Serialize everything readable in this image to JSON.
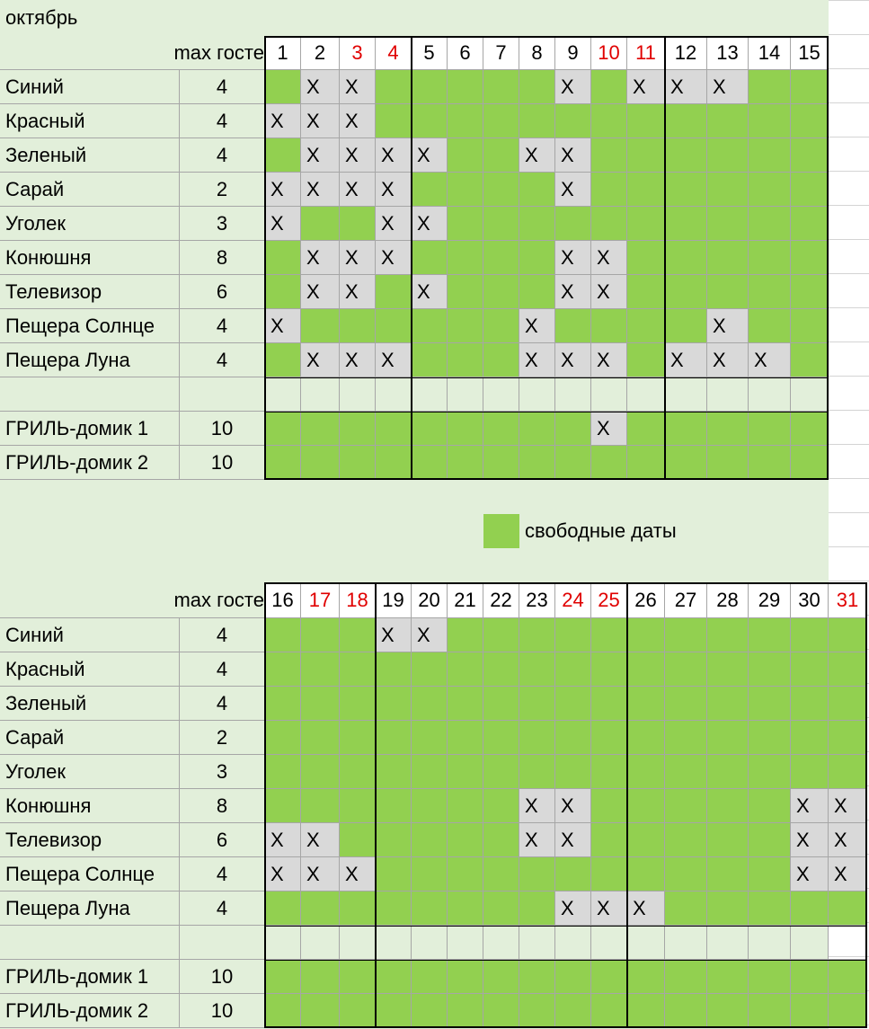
{
  "title": "октябрь",
  "legend": {
    "label": "свободные даты"
  },
  "blocks": [
    {
      "header": {
        "max_label": "max госте",
        "days": [
          1,
          2,
          3,
          4,
          5,
          6,
          7,
          8,
          9,
          10,
          11,
          12,
          13,
          14,
          15
        ],
        "red_days": [
          3,
          4,
          10,
          11
        ]
      },
      "rows": [
        {
          "name": "Синий",
          "max": 4,
          "cells": [
            null,
            "X",
            "X",
            null,
            null,
            null,
            null,
            null,
            "X",
            null,
            "X",
            "X",
            "X",
            null,
            null
          ]
        },
        {
          "name": "Красный",
          "max": 4,
          "cells": [
            "X",
            "X",
            "X",
            null,
            null,
            null,
            null,
            null,
            null,
            null,
            null,
            null,
            null,
            null,
            null
          ]
        },
        {
          "name": "Зеленый",
          "max": 4,
          "cells": [
            null,
            "X",
            "X",
            "X",
            "X",
            null,
            null,
            "X",
            "X",
            null,
            null,
            null,
            null,
            null,
            null
          ]
        },
        {
          "name": "Сарай",
          "max": 2,
          "cells": [
            "X",
            "X",
            "X",
            "X",
            null,
            null,
            null,
            null,
            "X",
            null,
            null,
            null,
            null,
            null,
            null
          ]
        },
        {
          "name": "Уголек",
          "max": 3,
          "cells": [
            "X",
            null,
            null,
            "X",
            "X",
            null,
            null,
            null,
            null,
            null,
            null,
            null,
            null,
            null,
            null
          ]
        },
        {
          "name": "Конюшня",
          "max": 8,
          "cells": [
            null,
            "X",
            "X",
            "X",
            null,
            null,
            null,
            null,
            "X",
            "X",
            null,
            null,
            null,
            null,
            null
          ]
        },
        {
          "name": "Телевизор",
          "max": 6,
          "cells": [
            null,
            "X",
            "X",
            null,
            "X",
            null,
            null,
            null,
            "X",
            "X",
            null,
            null,
            null,
            null,
            null
          ]
        },
        {
          "name": "Пещера Солнце",
          "max": 4,
          "cells": [
            "X",
            null,
            null,
            null,
            null,
            null,
            null,
            "X",
            null,
            null,
            null,
            null,
            "X",
            null,
            null
          ]
        },
        {
          "name": "Пещера Луна",
          "max": 4,
          "cells": [
            null,
            "X",
            "X",
            "X",
            null,
            null,
            null,
            "X",
            "X",
            "X",
            null,
            "X",
            "X",
            "X",
            null
          ]
        }
      ],
      "grill_rows": [
        {
          "name": "ГРИЛЬ-домик 1",
          "max": 10,
          "cells": [
            null,
            null,
            null,
            null,
            null,
            null,
            null,
            null,
            null,
            "X",
            null,
            null,
            null,
            null,
            null
          ]
        },
        {
          "name": "ГРИЛЬ-домик 2",
          "max": 10,
          "cells": [
            null,
            null,
            null,
            null,
            null,
            null,
            null,
            null,
            null,
            null,
            null,
            null,
            null,
            null,
            null
          ]
        }
      ]
    },
    {
      "header": {
        "max_label": "max госте",
        "days": [
          16,
          17,
          18,
          19,
          20,
          21,
          22,
          23,
          24,
          25,
          26,
          27,
          28,
          29,
          30,
          31
        ],
        "red_days": [
          17,
          18,
          24,
          25,
          31
        ]
      },
      "rows": [
        {
          "name": "Синий",
          "max": 4,
          "cells": [
            null,
            null,
            null,
            "X",
            "X",
            null,
            null,
            null,
            null,
            null,
            null,
            null,
            null,
            null,
            null,
            null
          ]
        },
        {
          "name": "Красный",
          "max": 4,
          "cells": [
            null,
            null,
            null,
            null,
            null,
            null,
            null,
            null,
            null,
            null,
            null,
            null,
            null,
            null,
            null,
            null
          ]
        },
        {
          "name": "Зеленый",
          "max": 4,
          "cells": [
            null,
            null,
            null,
            null,
            null,
            null,
            null,
            null,
            null,
            null,
            null,
            null,
            null,
            null,
            null,
            null
          ]
        },
        {
          "name": "Сарай",
          "max": 2,
          "cells": [
            null,
            null,
            null,
            null,
            null,
            null,
            null,
            null,
            null,
            null,
            null,
            null,
            null,
            null,
            null,
            null
          ]
        },
        {
          "name": "Уголек",
          "max": 3,
          "cells": [
            null,
            null,
            null,
            null,
            null,
            null,
            null,
            null,
            null,
            null,
            null,
            null,
            null,
            null,
            null,
            null
          ]
        },
        {
          "name": "Конюшня",
          "max": 8,
          "cells": [
            null,
            null,
            null,
            null,
            null,
            null,
            null,
            "X",
            "X",
            null,
            null,
            null,
            null,
            null,
            "X",
            "X"
          ]
        },
        {
          "name": "Телевизор",
          "max": 6,
          "cells": [
            "X",
            "X",
            null,
            null,
            null,
            null,
            null,
            "X",
            "X",
            null,
            null,
            null,
            null,
            null,
            "X",
            "X"
          ]
        },
        {
          "name": "Пещера Солнце",
          "max": 4,
          "cells": [
            "X",
            "X",
            "X",
            null,
            null,
            null,
            null,
            null,
            null,
            null,
            null,
            null,
            null,
            null,
            "X",
            "X"
          ]
        },
        {
          "name": "Пещера Луна",
          "max": 4,
          "cells": [
            null,
            null,
            null,
            null,
            null,
            null,
            null,
            null,
            "X",
            "X",
            "X",
            null,
            null,
            null,
            null,
            null
          ]
        }
      ],
      "grill_rows": [
        {
          "name": "ГРИЛЬ-домик 1",
          "max": 10,
          "cells": [
            null,
            null,
            null,
            null,
            null,
            null,
            null,
            null,
            null,
            null,
            null,
            null,
            null,
            null,
            null,
            null
          ]
        },
        {
          "name": "ГРИЛЬ-домик 2",
          "max": 10,
          "cells": [
            null,
            null,
            null,
            null,
            null,
            null,
            null,
            null,
            null,
            null,
            null,
            null,
            null,
            null,
            null,
            null
          ]
        }
      ]
    }
  ]
}
